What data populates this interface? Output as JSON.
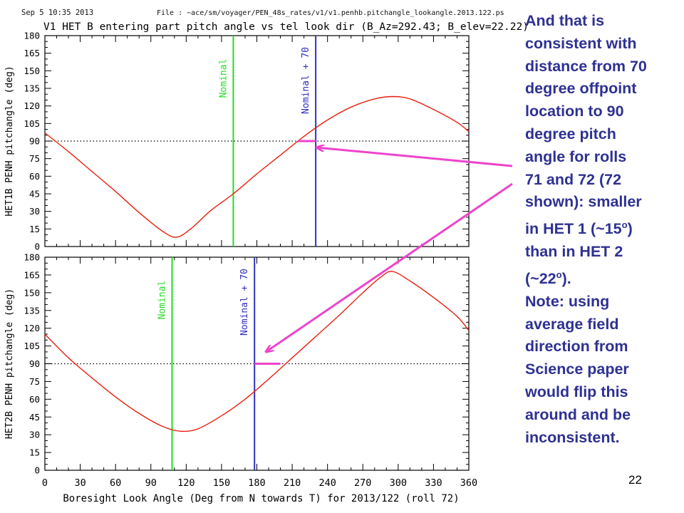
{
  "header": {
    "datetime": "Sep  5 10:35 2013",
    "file_label": "File : ~ace/sm/voyager/PEN_48s_rates/v1/v1.penhb.pitchangle_lookangle.2013.122.ps"
  },
  "chart_data": [
    {
      "type": "line",
      "title": "V1 HET B entering part pitch angle vs tel look dir (B_Az=292.43; B_elev=22.22)",
      "ylabel": "HET1B PENH pitchangle (deg)",
      "xlabel": "",
      "xlim": [
        0,
        360
      ],
      "ylim": [
        0,
        180
      ],
      "yticks": [
        "0",
        "15",
        "30",
        "45",
        "60",
        "75",
        "90",
        "105",
        "120",
        "135",
        "150",
        "165",
        "180"
      ],
      "grid": false,
      "series": [
        {
          "color": "#e8200f",
          "x": [
            0,
            20,
            40,
            60,
            80,
            100,
            112,
            125,
            140,
            160,
            180,
            200,
            220,
            240,
            260,
            280,
            295,
            310,
            330,
            350,
            360
          ],
          "y": [
            97,
            81,
            64,
            47,
            29,
            13,
            8,
            16,
            30,
            45,
            62,
            78,
            94,
            108,
            119,
            126,
            128,
            126,
            117,
            106,
            98
          ]
        }
      ],
      "reference_line": {
        "y": 90,
        "style": "dotted"
      },
      "vlines": [
        {
          "x": 160,
          "label": "Nominal",
          "color": "#22dd22"
        },
        {
          "x": 230,
          "label": "Nominal + 70",
          "color": "#3030c0"
        }
      ],
      "marker": {
        "x1": 215,
        "x2": 230,
        "y": 90,
        "color": "#ee44cc"
      }
    },
    {
      "type": "line",
      "title": "",
      "ylabel": "HET2B PENH pitchangle (deg)",
      "xlabel": "Boresight Look Angle (Deg from N towards T) for 2013/122 (roll 72)",
      "xlim": [
        0,
        360
      ],
      "ylim": [
        0,
        180
      ],
      "xticks": [
        "0",
        "30",
        "60",
        "90",
        "120",
        "150",
        "180",
        "210",
        "240",
        "270",
        "300",
        "330",
        "360"
      ],
      "yticks": [
        "0",
        "15",
        "30",
        "45",
        "60",
        "75",
        "90",
        "105",
        "120",
        "135",
        "150",
        "165",
        "180"
      ],
      "grid": false,
      "series": [
        {
          "color": "#e8200f",
          "x": [
            0,
            20,
            40,
            60,
            80,
            100,
            115,
            130,
            150,
            170,
            190,
            210,
            230,
            250,
            270,
            285,
            295,
            310,
            330,
            350,
            360
          ],
          "y": [
            115,
            95,
            78,
            62,
            48,
            37,
            33,
            35,
            46,
            60,
            77,
            95,
            113,
            131,
            150,
            163,
            168,
            160,
            146,
            130,
            118
          ]
        }
      ],
      "reference_line": {
        "y": 90,
        "style": "dotted"
      },
      "vlines": [
        {
          "x": 108,
          "label": "Nominal",
          "color": "#22dd22"
        },
        {
          "x": 178,
          "label": "Nominal + 70",
          "color": "#3030c0"
        }
      ],
      "marker": {
        "x1": 178,
        "x2": 200,
        "y": 90,
        "color": "#ee44cc"
      }
    }
  ],
  "annotation": {
    "lines": [
      "And that is",
      "consistent with",
      "distance from 70",
      "degree offpoint",
      "location to 90",
      "degree pitch",
      "angle for rolls",
      "71 and 72 (72",
      "shown): smaller",
      "in HET 1 (~15",
      "than in HET 2",
      "(~22",
      "Note: using",
      "average field",
      "direction from",
      "Science paper",
      "would flip this",
      "around and be",
      "inconsistent."
    ],
    "degree_mark": "o",
    "close_1": ")",
    "close_2": ").",
    "arrow_color": "#ee44cc",
    "text_color": "#2e3192"
  },
  "slide_number": "22"
}
